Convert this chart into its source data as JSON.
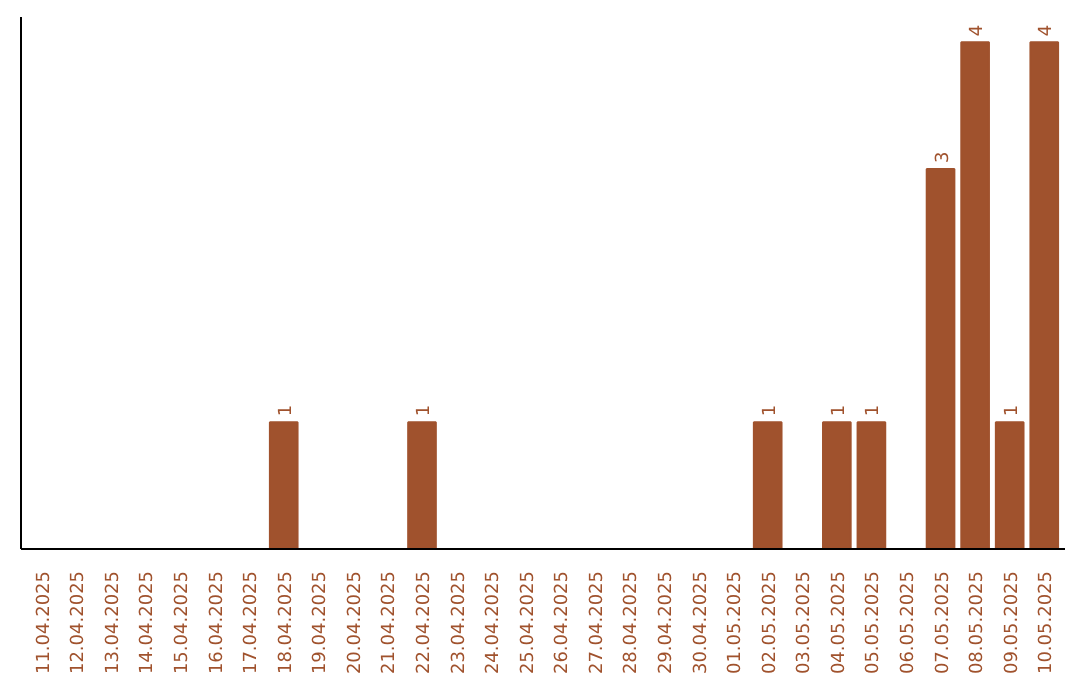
{
  "chart_data": {
    "type": "bar",
    "categories": [
      "11.04.2025",
      "12.04.2025",
      "13.04.2025",
      "14.04.2025",
      "15.04.2025",
      "16.04.2025",
      "17.04.2025",
      "18.04.2025",
      "19.04.2025",
      "20.04.2025",
      "21.04.2025",
      "22.04.2025",
      "23.04.2025",
      "24.04.2025",
      "25.04.2025",
      "26.04.2025",
      "27.04.2025",
      "28.04.2025",
      "29.04.2025",
      "30.04.2025",
      "01.05.2025",
      "02.05.2025",
      "03.05.2025",
      "04.05.2025",
      "05.05.2025",
      "06.05.2025",
      "07.05.2025",
      "08.05.2025",
      "09.05.2025",
      "10.05.2025"
    ],
    "values": [
      0,
      0,
      0,
      0,
      0,
      0,
      0,
      1,
      0,
      0,
      0,
      1,
      0,
      0,
      0,
      0,
      0,
      0,
      0,
      0,
      0,
      1,
      0,
      1,
      1,
      0,
      3,
      4,
      1,
      4
    ],
    "value_labels": [
      null,
      null,
      null,
      null,
      null,
      null,
      null,
      "1",
      null,
      null,
      null,
      "1",
      null,
      null,
      null,
      null,
      null,
      null,
      null,
      null,
      null,
      "1",
      null,
      "1",
      "1",
      null,
      "3",
      "4",
      "1",
      "4"
    ],
    "color": "#a0522d",
    "ylim": [
      0,
      4.2
    ],
    "grid": false
  }
}
